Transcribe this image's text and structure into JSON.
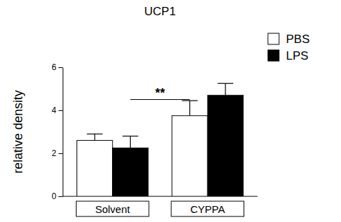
{
  "chart_data": {
    "type": "bar",
    "title": "UCP1",
    "y_label": "relative density",
    "categories": [
      "Solvent",
      "CYPPA"
    ],
    "series": [
      {
        "name": "PBS",
        "color": "#ffffff",
        "values": [
          2.6,
          3.75
        ],
        "errors": [
          0.3,
          0.7
        ]
      },
      {
        "name": "LPS",
        "color": "#000000",
        "values": [
          2.25,
          4.7
        ],
        "errors": [
          0.55,
          0.55
        ]
      }
    ],
    "ylim": [
      0,
      6
    ],
    "yticks": [
      0,
      2,
      4,
      6
    ],
    "grid": false,
    "legend": "upper right",
    "annotations": [
      {
        "text": "**",
        "x1": "Solvent",
        "x2": "CYPPA",
        "y": 4.5
      }
    ]
  }
}
